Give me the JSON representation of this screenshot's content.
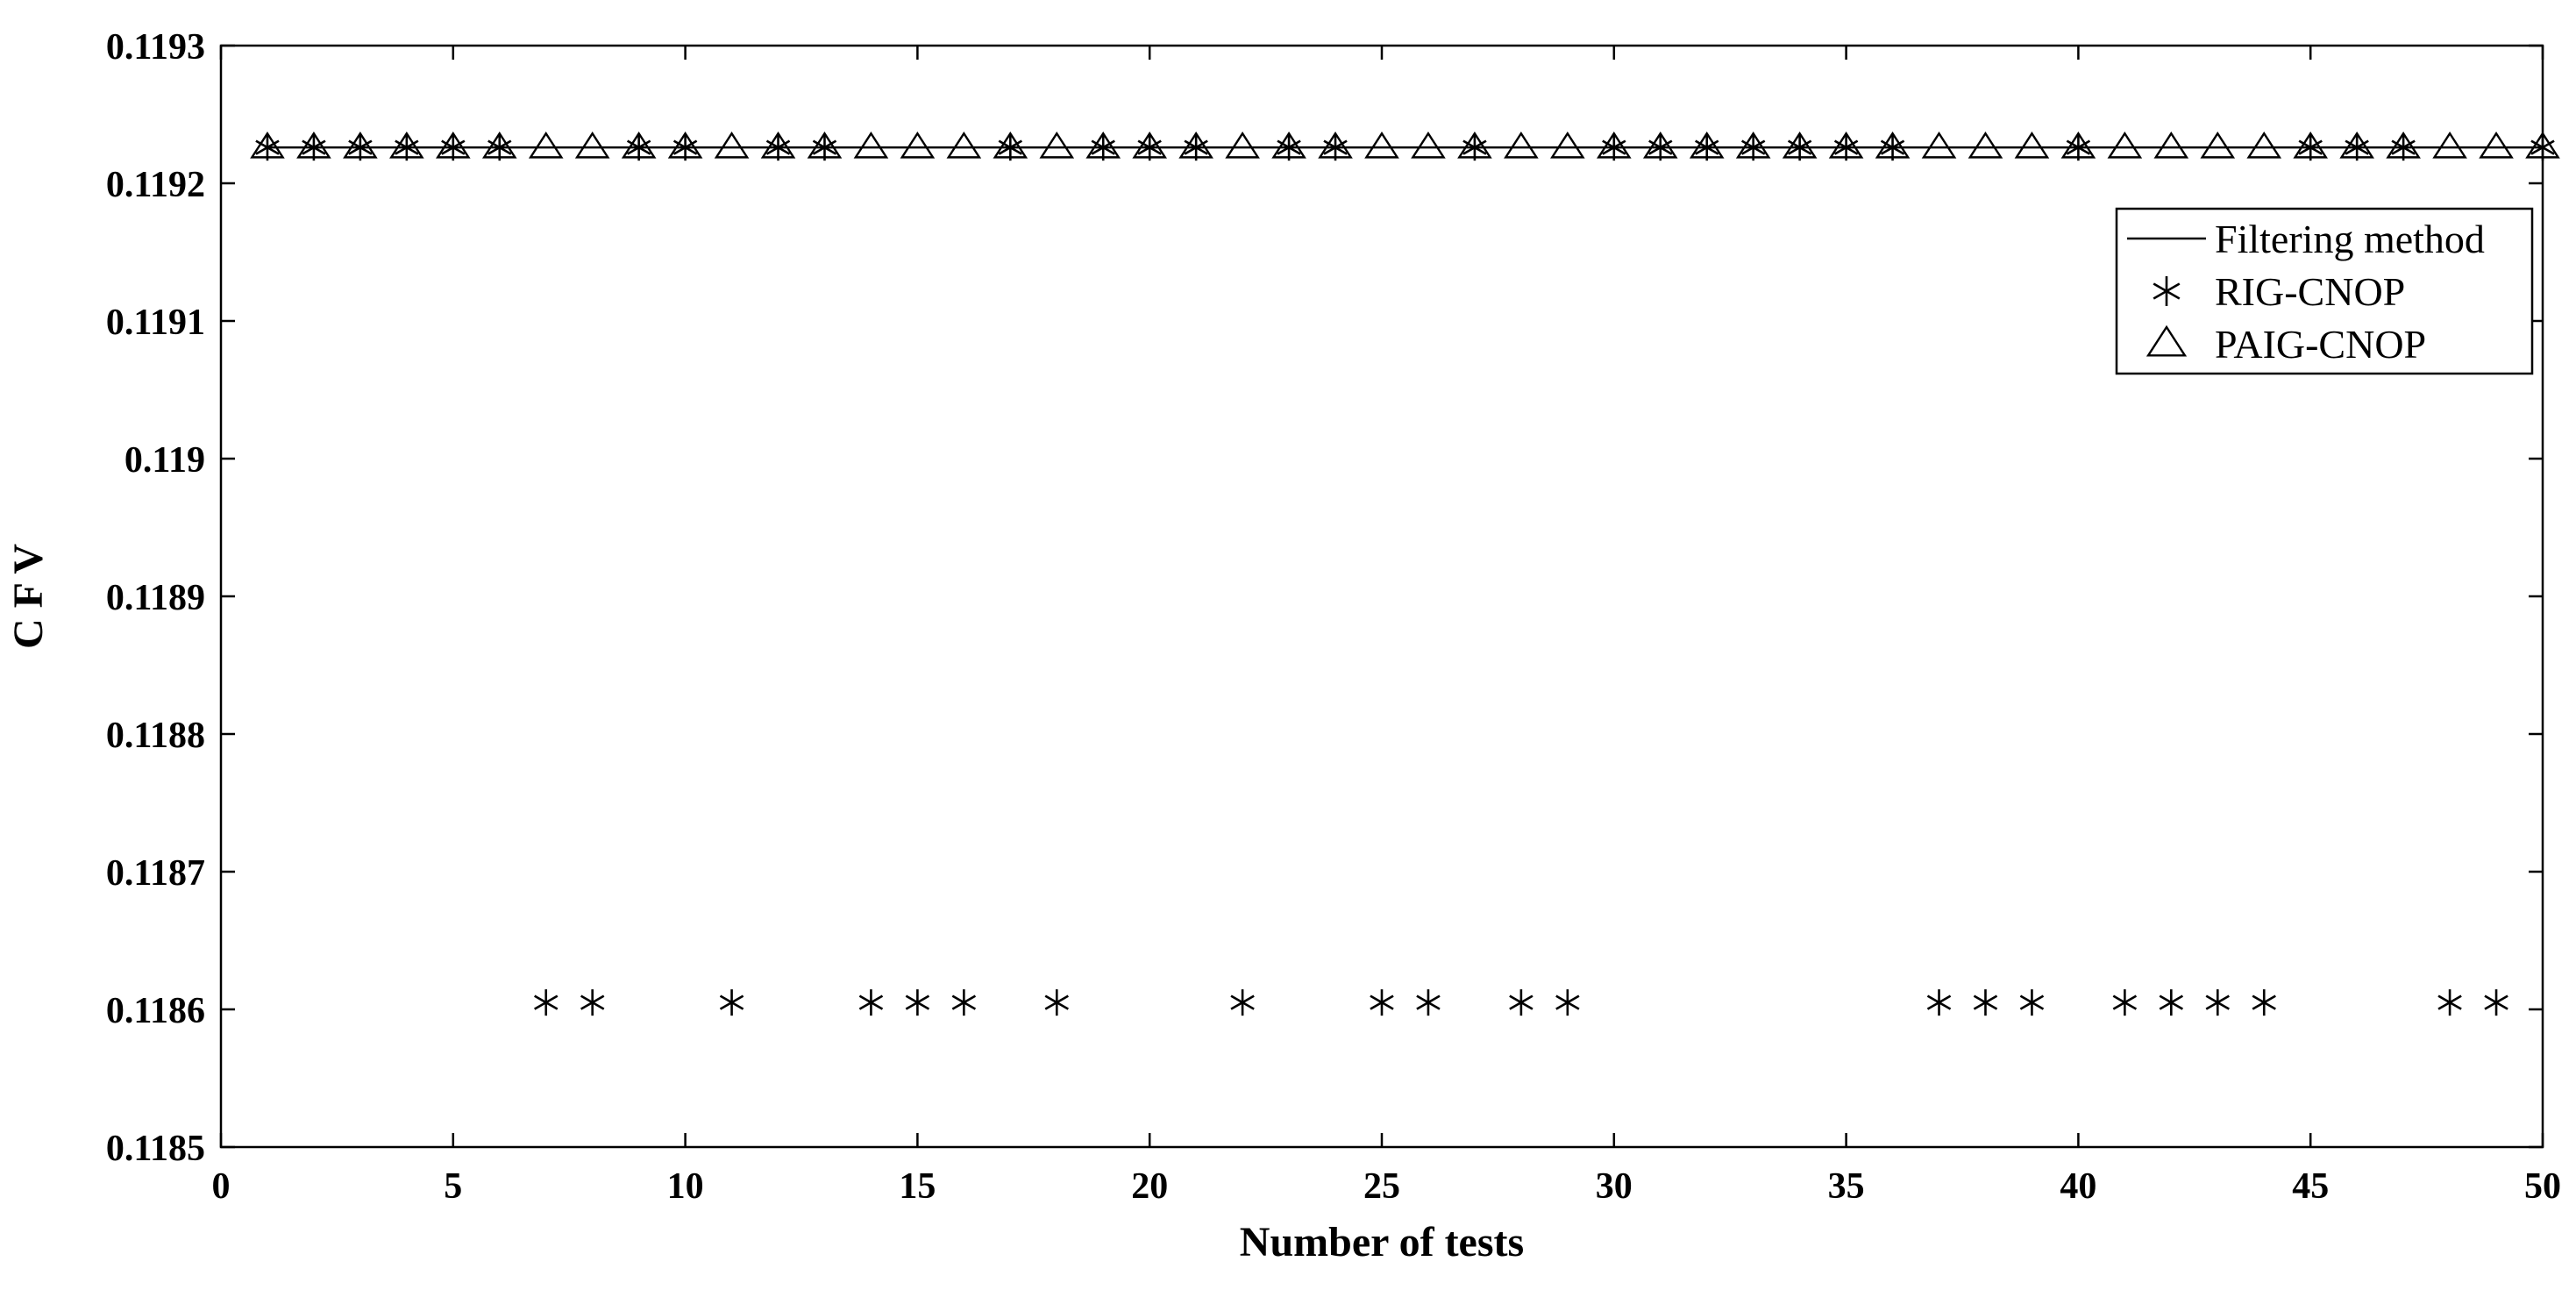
{
  "chart_data": {
    "type": "scatter",
    "title": "",
    "xlabel": "Number of tests",
    "ylabel": "C F V",
    "xlim": [
      0,
      50
    ],
    "ylim": [
      0.1185,
      0.1193
    ],
    "x_ticks": [
      0,
      5,
      10,
      15,
      20,
      25,
      30,
      35,
      40,
      45,
      50
    ],
    "x_tick_labels": [
      "0",
      "5",
      "10",
      "15",
      "20",
      "25",
      "30",
      "35",
      "40",
      "45",
      "50"
    ],
    "y_ticks": [
      0.1185,
      0.1186,
      0.1187,
      0.1188,
      0.1189,
      0.119,
      0.1191,
      0.1192,
      0.1193
    ],
    "y_tick_labels": [
      "0.1185",
      "0.1186",
      "0.1187",
      "0.1188",
      "0.1189",
      "0.119",
      "0.1191",
      "0.1192",
      "0.1193"
    ],
    "grid": false,
    "legend_position": "top-right",
    "series": [
      {
        "name": "Filtering method",
        "style": "line",
        "x": [
          1,
          50
        ],
        "y": [
          0.119226,
          0.119226
        ]
      },
      {
        "name": "RIG-CNOP",
        "style": "asterisk",
        "x": [
          1,
          2,
          3,
          4,
          5,
          6,
          7,
          8,
          9,
          10,
          11,
          12,
          13,
          14,
          15,
          16,
          17,
          18,
          19,
          20,
          21,
          22,
          23,
          24,
          25,
          26,
          27,
          28,
          29,
          30,
          31,
          32,
          33,
          34,
          35,
          36,
          37,
          38,
          39,
          40,
          41,
          42,
          43,
          44,
          45,
          46,
          47,
          48,
          49,
          50
        ],
        "y": [
          0.119226,
          0.119226,
          0.119226,
          0.119226,
          0.119226,
          0.119226,
          0.118605,
          0.118605,
          0.119226,
          0.119226,
          0.118605,
          0.119226,
          0.119226,
          0.118605,
          0.118605,
          0.118605,
          0.119226,
          0.118605,
          0.119226,
          0.119226,
          0.119226,
          0.118605,
          0.119226,
          0.119226,
          0.118605,
          0.118605,
          0.119226,
          0.118605,
          0.118605,
          0.119226,
          0.119226,
          0.119226,
          0.119226,
          0.119226,
          0.119226,
          0.119226,
          0.118605,
          0.118605,
          0.118605,
          0.119226,
          0.118605,
          0.118605,
          0.118605,
          0.118605,
          0.119226,
          0.119226,
          0.119226,
          0.118605,
          0.118605,
          0.119226
        ]
      },
      {
        "name": "PAIG-CNOP",
        "style": "triangle",
        "x": [
          1,
          2,
          3,
          4,
          5,
          6,
          7,
          8,
          9,
          10,
          11,
          12,
          13,
          14,
          15,
          16,
          17,
          18,
          19,
          20,
          21,
          22,
          23,
          24,
          25,
          26,
          27,
          28,
          29,
          30,
          31,
          32,
          33,
          34,
          35,
          36,
          37,
          38,
          39,
          40,
          41,
          42,
          43,
          44,
          45,
          46,
          47,
          48,
          49,
          50
        ],
        "y": [
          0.119226,
          0.119226,
          0.119226,
          0.119226,
          0.119226,
          0.119226,
          0.119226,
          0.119226,
          0.119226,
          0.119226,
          0.119226,
          0.119226,
          0.119226,
          0.119226,
          0.119226,
          0.119226,
          0.119226,
          0.119226,
          0.119226,
          0.119226,
          0.119226,
          0.119226,
          0.119226,
          0.119226,
          0.119226,
          0.119226,
          0.119226,
          0.119226,
          0.119226,
          0.119226,
          0.119226,
          0.119226,
          0.119226,
          0.119226,
          0.119226,
          0.119226,
          0.119226,
          0.119226,
          0.119226,
          0.119226,
          0.119226,
          0.119226,
          0.119226,
          0.119226,
          0.119226,
          0.119226,
          0.119226,
          0.119226,
          0.119226,
          0.119226
        ]
      }
    ],
    "colors": {
      "background": "#ffffff",
      "axis": "#000000",
      "marker": "#000000"
    }
  }
}
